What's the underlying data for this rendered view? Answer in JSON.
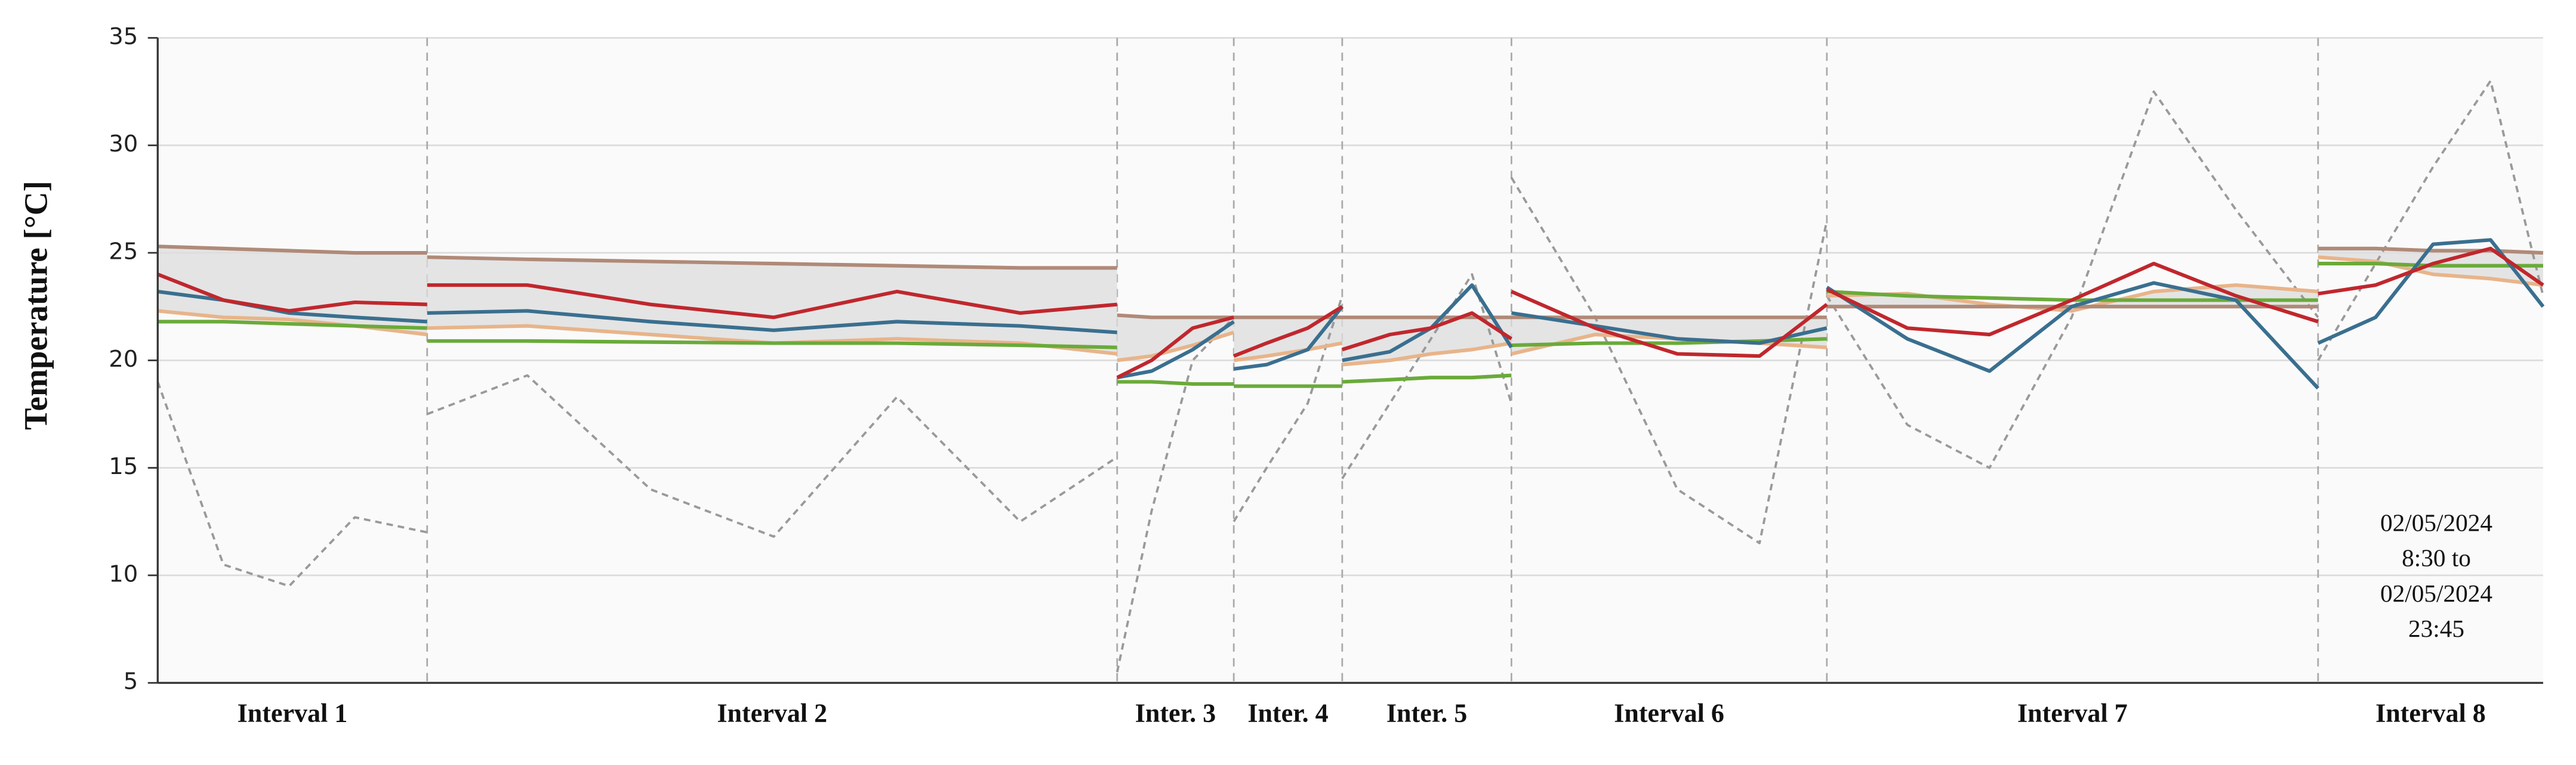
{
  "chart_data": {
    "type": "line",
    "y_label": "Temperature [°C]",
    "ylim": [
      5,
      35
    ],
    "yticks": [
      5,
      10,
      15,
      20,
      25,
      30,
      35
    ],
    "grid": true,
    "xlim": [
      0,
      290.4
    ],
    "categories": [
      "Interval 1",
      "Interval 2",
      "Inter. 3",
      "Inter. 4",
      "Inter. 5",
      "Interval 6",
      "Interval 7",
      "Interval 8"
    ],
    "separators": [
      32.8,
      116.8,
      131,
      144.2,
      164.8,
      203.2,
      263
    ],
    "annotation": [
      "02/05/2024",
      "8:30 to",
      "02/05/2024",
      "23:45"
    ],
    "x": [
      0,
      8,
      16,
      24,
      32.8,
      null,
      32.8,
      45,
      60,
      75,
      90,
      105,
      116.8,
      null,
      116.8,
      121,
      126,
      131,
      null,
      131,
      135,
      140,
      144.2,
      null,
      144.2,
      150,
      155,
      160,
      164.8,
      null,
      164.8,
      175,
      185,
      195,
      203.2,
      null,
      203.2,
      213,
      223,
      233,
      243,
      253,
      263,
      null,
      263,
      270,
      277,
      284,
      290.4
    ],
    "series": [
      {
        "color": "#9a9a9a",
        "dashed": true,
        "values": [
          19,
          10.5,
          9.5,
          12.7,
          12,
          null,
          17.5,
          19.3,
          14,
          11.8,
          18.3,
          12.5,
          15.5,
          null,
          5.5,
          13,
          20,
          22,
          null,
          12.5,
          15,
          18,
          23,
          null,
          14.5,
          18,
          21,
          24,
          18,
          null,
          28.5,
          22,
          14,
          11.5,
          26.5,
          null,
          23,
          17,
          15,
          22,
          32.5,
          27,
          22,
          null,
          20,
          24.5,
          29,
          33,
          23
        ]
      },
      {
        "color": "#e8b48a",
        "values": [
          22.3,
          22.0,
          21.9,
          21.6,
          21.2,
          null,
          21.5,
          21.6,
          21.2,
          20.8,
          21,
          20.8,
          20.3,
          null,
          20,
          20.2,
          20.7,
          21.3,
          null,
          20,
          20.2,
          20.5,
          20.8,
          null,
          19.8,
          20,
          20.3,
          20.5,
          20.8,
          null,
          20.3,
          21.2,
          21,
          20.8,
          20.6,
          null,
          23,
          23.1,
          22.6,
          22.3,
          23.2,
          23.5,
          23.2,
          null,
          24.8,
          24.6,
          24,
          23.8,
          23.5
        ]
      },
      {
        "color": "#b08a78",
        "shade": "#dedede",
        "values": [
          25.3,
          25.2,
          25.1,
          25.0,
          25.0,
          null,
          24.8,
          24.7,
          24.6,
          24.5,
          24.4,
          24.3,
          24.3,
          null,
          22.1,
          22.0,
          22.0,
          22.0,
          null,
          22.0,
          22.0,
          22.0,
          22.0,
          null,
          22.0,
          22.0,
          22.0,
          22.0,
          22.0,
          null,
          22.0,
          22.0,
          22.0,
          22.0,
          22.0,
          null,
          22.5,
          22.5,
          22.5,
          22.5,
          22.5,
          22.5,
          22.5,
          null,
          25.2,
          25.2,
          25.1,
          25.1,
          25.0
        ]
      },
      {
        "color": "#6aaa3a",
        "values": [
          21.8,
          21.8,
          21.7,
          21.6,
          21.5,
          null,
          20.9,
          20.9,
          20.85,
          20.8,
          20.8,
          20.7,
          20.6,
          null,
          19,
          19,
          18.9,
          18.9,
          null,
          18.8,
          18.8,
          18.8,
          18.8,
          null,
          19,
          19.1,
          19.2,
          19.2,
          19.3,
          null,
          20.7,
          20.8,
          20.8,
          20.9,
          21,
          null,
          23.2,
          23.0,
          22.9,
          22.8,
          22.8,
          22.8,
          22.8,
          null,
          24.5,
          24.5,
          24.4,
          24.4,
          24.4
        ]
      },
      {
        "color": "#3a6f8f",
        "values": [
          23.2,
          22.8,
          22.2,
          22.0,
          21.8,
          null,
          22.2,
          22.3,
          21.8,
          21.4,
          21.8,
          21.6,
          21.3,
          null,
          19.2,
          19.5,
          20.5,
          21.8,
          null,
          19.6,
          19.8,
          20.5,
          22.5,
          null,
          20,
          20.4,
          21.5,
          23.5,
          20.6,
          null,
          22.2,
          21.6,
          21.0,
          20.8,
          21.5,
          null,
          23.4,
          21,
          19.5,
          22.5,
          23.6,
          22.8,
          18.7,
          null,
          20.8,
          22,
          25.4,
          25.6,
          22.5
        ]
      },
      {
        "color": "#c0272d",
        "values": [
          24,
          22.8,
          22.3,
          22.7,
          22.6,
          null,
          23.5,
          23.5,
          22.6,
          22.0,
          23.2,
          22.2,
          22.6,
          null,
          19.2,
          20,
          21.5,
          22,
          null,
          20.2,
          20.8,
          21.5,
          22.5,
          null,
          20.5,
          21.2,
          21.5,
          22.2,
          21,
          null,
          23.2,
          21.5,
          20.3,
          20.2,
          22.6,
          null,
          23.3,
          21.5,
          21.2,
          22.8,
          24.5,
          23,
          21.8,
          null,
          23.1,
          23.5,
          24.5,
          25.2,
          23.5
        ]
      }
    ]
  }
}
